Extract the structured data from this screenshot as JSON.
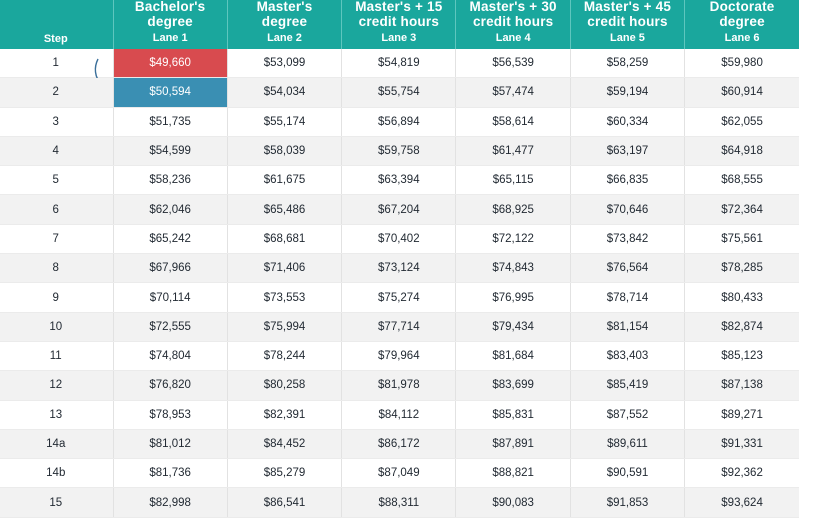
{
  "header": {
    "step_label": "Step",
    "lanes": [
      {
        "title": "Bachelor's\ndegree",
        "lane": "Lane 1"
      },
      {
        "title": "Master's\ndegree",
        "lane": "Lane 2"
      },
      {
        "title": "Master's + 15\ncredit hours",
        "lane": "Lane 3"
      },
      {
        "title": "Master's + 30\ncredit hours",
        "lane": "Lane 4"
      },
      {
        "title": "Master's + 45\ncredit hours",
        "lane": "Lane 5"
      },
      {
        "title": "Doctorate\ndegree",
        "lane": "Lane 6"
      }
    ]
  },
  "highlight_colors": {
    "red": "#d84b4f",
    "blue": "#3a8fb3",
    "header": "#1aa79d"
  },
  "arrow_icon": "curved-down-arrow-icon",
  "rows": [
    {
      "step": "1",
      "values": [
        "$49,660",
        "$53,099",
        "$54,819",
        "$56,539",
        "$58,259",
        "$59,980"
      ]
    },
    {
      "step": "2",
      "values": [
        "$50,594",
        "$54,034",
        "$55,754",
        "$57,474",
        "$59,194",
        "$60,914"
      ]
    },
    {
      "step": "3",
      "values": [
        "$51,735",
        "$55,174",
        "$56,894",
        "$58,614",
        "$60,334",
        "$62,055"
      ]
    },
    {
      "step": "4",
      "values": [
        "$54,599",
        "$58,039",
        "$59,758",
        "$61,477",
        "$63,197",
        "$64,918"
      ]
    },
    {
      "step": "5",
      "values": [
        "$58,236",
        "$61,675",
        "$63,394",
        "$65,115",
        "$66,835",
        "$68,555"
      ]
    },
    {
      "step": "6",
      "values": [
        "$62,046",
        "$65,486",
        "$67,204",
        "$68,925",
        "$70,646",
        "$72,364"
      ]
    },
    {
      "step": "7",
      "values": [
        "$65,242",
        "$68,681",
        "$70,402",
        "$72,122",
        "$73,842",
        "$75,561"
      ]
    },
    {
      "step": "8",
      "values": [
        "$67,966",
        "$71,406",
        "$73,124",
        "$74,843",
        "$76,564",
        "$78,285"
      ]
    },
    {
      "step": "9",
      "values": [
        "$70,114",
        "$73,553",
        "$75,274",
        "$76,995",
        "$78,714",
        "$80,433"
      ]
    },
    {
      "step": "10",
      "values": [
        "$72,555",
        "$75,994",
        "$77,714",
        "$79,434",
        "$81,154",
        "$82,874"
      ]
    },
    {
      "step": "11",
      "values": [
        "$74,804",
        "$78,244",
        "$79,964",
        "$81,684",
        "$83,403",
        "$85,123"
      ]
    },
    {
      "step": "12",
      "values": [
        "$76,820",
        "$80,258",
        "$81,978",
        "$83,699",
        "$85,419",
        "$87,138"
      ]
    },
    {
      "step": "13",
      "values": [
        "$78,953",
        "$82,391",
        "$84,112",
        "$85,831",
        "$87,552",
        "$89,271"
      ]
    },
    {
      "step": "14a",
      "values": [
        "$81,012",
        "$84,452",
        "$86,172",
        "$87,891",
        "$89,611",
        "$91,331"
      ]
    },
    {
      "step": "14b",
      "values": [
        "$81,736",
        "$85,279",
        "$87,049",
        "$88,821",
        "$90,591",
        "$92,362"
      ]
    },
    {
      "step": "15",
      "values": [
        "$82,998",
        "$86,541",
        "$88,311",
        "$90,083",
        "$91,853",
        "$93,624"
      ]
    }
  ]
}
